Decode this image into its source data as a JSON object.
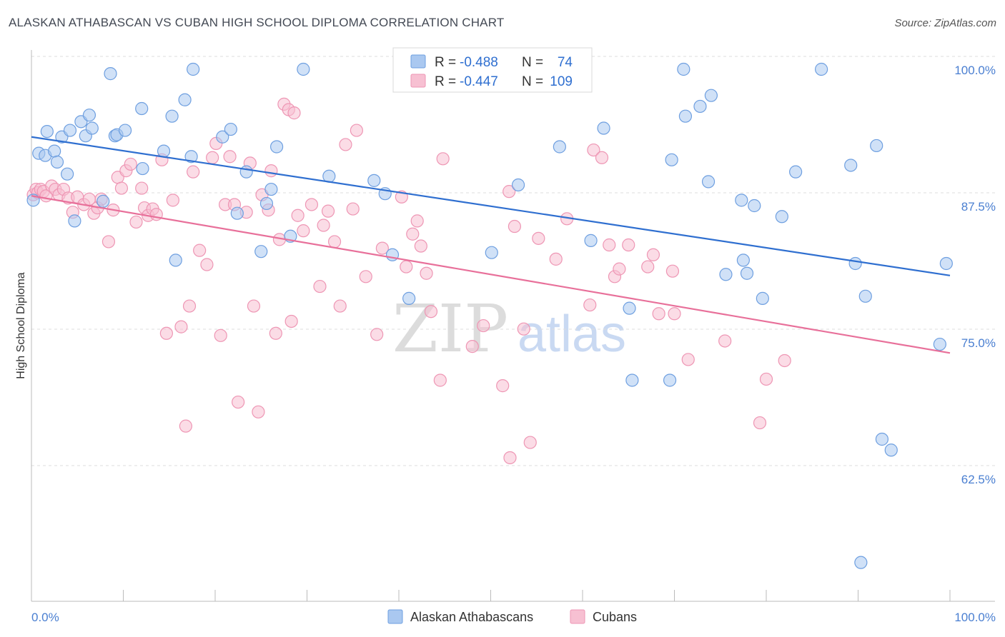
{
  "header": {
    "title": "ALASKAN ATHABASCAN VS CUBAN HIGH SCHOOL DIPLOMA CORRELATION CHART",
    "source": "Source: ZipAtlas.com"
  },
  "watermark": {
    "zip": "ZIP",
    "atlas": "atlas"
  },
  "colors": {
    "blue_fill": "#aac8f0",
    "blue_stroke": "#6e9fe0",
    "blue_line": "#2f6fd0",
    "pink_fill": "#f7c0d2",
    "pink_stroke": "#ee96b4",
    "pink_line": "#e8709a",
    "grid": "#dddddd",
    "axis_text": "#4a7fd1"
  },
  "legend": {
    "rows": [
      {
        "r_label": "R =",
        "r_value": "-0.488",
        "n_label": "N =",
        "n_value": "74"
      },
      {
        "r_label": "R =",
        "r_value": "-0.447",
        "n_label": "N =",
        "n_value": "109"
      }
    ]
  },
  "chart_data": {
    "type": "scatter",
    "title": "ALASKAN ATHABASCAN VS CUBAN HIGH SCHOOL DIPLOMA CORRELATION CHART",
    "xlabel": "",
    "ylabel": "High School Diploma",
    "xlim": [
      0,
      100
    ],
    "ylim": [
      52,
      103
    ],
    "x_tick_labels": [
      "0.0%",
      "100.0%"
    ],
    "y_ticks": [
      {
        "value": 100.0,
        "label": "100.0%"
      },
      {
        "value": 87.5,
        "label": "87.5%"
      },
      {
        "value": 75.0,
        "label": "75.0%"
      },
      {
        "value": 62.5,
        "label": "62.5%"
      }
    ],
    "grid": true,
    "legend_position": "bottom",
    "series": [
      {
        "name": "Alaskan Athabascans",
        "color": "blue",
        "r": -0.488,
        "n": 74,
        "trend": {
          "x0": 0,
          "y0": 93.8,
          "x1": 100,
          "y1": 81.1
        },
        "points": [
          [
            0.2,
            88.0
          ],
          [
            0.8,
            92.3
          ],
          [
            1.5,
            92.1
          ],
          [
            1.7,
            94.3
          ],
          [
            2.5,
            92.5
          ],
          [
            2.8,
            91.5
          ],
          [
            3.3,
            93.8
          ],
          [
            3.9,
            90.4
          ],
          [
            4.2,
            94.4
          ],
          [
            4.7,
            86.1
          ],
          [
            5.4,
            95.2
          ],
          [
            5.9,
            93.9
          ],
          [
            6.3,
            95.8
          ],
          [
            6.6,
            94.6
          ],
          [
            7.8,
            87.9
          ],
          [
            8.6,
            99.6
          ],
          [
            9.1,
            93.9
          ],
          [
            9.3,
            94.0
          ],
          [
            10.2,
            94.4
          ],
          [
            12.0,
            96.4
          ],
          [
            12.1,
            90.9
          ],
          [
            14.4,
            92.5
          ],
          [
            15.3,
            95.7
          ],
          [
            15.7,
            82.5
          ],
          [
            16.7,
            97.2
          ],
          [
            17.4,
            92.0
          ],
          [
            17.6,
            100.0
          ],
          [
            20.8,
            93.8
          ],
          [
            21.7,
            94.5
          ],
          [
            22.4,
            86.8
          ],
          [
            23.4,
            90.6
          ],
          [
            25.0,
            83.3
          ],
          [
            25.6,
            87.7
          ],
          [
            26.1,
            89.0
          ],
          [
            26.7,
            92.9
          ],
          [
            28.2,
            84.7
          ],
          [
            29.6,
            100.0
          ],
          [
            32.4,
            90.2
          ],
          [
            37.3,
            89.8
          ],
          [
            38.5,
            88.6
          ],
          [
            39.3,
            83.0
          ],
          [
            41.1,
            79.0
          ],
          [
            50.1,
            83.2
          ],
          [
            53.0,
            89.4
          ],
          [
            57.5,
            92.9
          ],
          [
            60.9,
            84.3
          ],
          [
            62.3,
            94.6
          ],
          [
            65.1,
            78.1
          ],
          [
            65.4,
            71.5
          ],
          [
            69.5,
            71.5
          ],
          [
            69.7,
            91.7
          ],
          [
            71.0,
            100.0
          ],
          [
            71.2,
            95.7
          ],
          [
            72.8,
            96.6
          ],
          [
            73.7,
            89.7
          ],
          [
            74.0,
            97.6
          ],
          [
            75.6,
            81.2
          ],
          [
            77.3,
            88.0
          ],
          [
            77.5,
            82.5
          ],
          [
            77.9,
            81.3
          ],
          [
            78.7,
            87.5
          ],
          [
            79.6,
            79.0
          ],
          [
            81.7,
            86.5
          ],
          [
            83.2,
            90.6
          ],
          [
            86.0,
            100.0
          ],
          [
            89.2,
            91.2
          ],
          [
            89.7,
            82.2
          ],
          [
            90.3,
            54.8
          ],
          [
            90.8,
            79.2
          ],
          [
            92.0,
            93.0
          ],
          [
            92.6,
            66.1
          ],
          [
            93.6,
            65.1
          ],
          [
            98.9,
            74.8
          ],
          [
            99.6,
            82.2
          ]
        ]
      },
      {
        "name": "Cubans",
        "color": "pink",
        "r": -0.447,
        "n": 109,
        "trend": {
          "x0": 0,
          "y0": 88.4,
          "x1": 100,
          "y1": 74.0
        },
        "points": [
          [
            0.2,
            88.5
          ],
          [
            0.5,
            89.0
          ],
          [
            0.7,
            88.7
          ],
          [
            1.0,
            89.0
          ],
          [
            1.3,
            88.8
          ],
          [
            1.6,
            88.4
          ],
          [
            2.2,
            89.3
          ],
          [
            2.6,
            89.0
          ],
          [
            3.0,
            88.5
          ],
          [
            3.5,
            89.0
          ],
          [
            4.0,
            88.2
          ],
          [
            4.5,
            86.9
          ],
          [
            5.0,
            88.3
          ],
          [
            5.7,
            87.6
          ],
          [
            6.3,
            88.1
          ],
          [
            6.8,
            86.8
          ],
          [
            7.2,
            87.3
          ],
          [
            7.6,
            88.1
          ],
          [
            8.4,
            84.2
          ],
          [
            8.9,
            87.1
          ],
          [
            9.4,
            90.1
          ],
          [
            9.8,
            89.1
          ],
          [
            10.3,
            90.7
          ],
          [
            10.8,
            91.3
          ],
          [
            11.4,
            86.0
          ],
          [
            12.0,
            89.1
          ],
          [
            12.3,
            87.3
          ],
          [
            12.7,
            86.6
          ],
          [
            13.2,
            87.2
          ],
          [
            13.6,
            86.7
          ],
          [
            14.2,
            91.7
          ],
          [
            14.7,
            75.8
          ],
          [
            15.4,
            88.0
          ],
          [
            16.3,
            76.4
          ],
          [
            16.8,
            67.3
          ],
          [
            17.2,
            78.3
          ],
          [
            17.6,
            90.6
          ],
          [
            18.3,
            83.4
          ],
          [
            19.1,
            82.1
          ],
          [
            19.7,
            91.9
          ],
          [
            20.1,
            93.2
          ],
          [
            20.6,
            75.6
          ],
          [
            21.1,
            87.6
          ],
          [
            21.6,
            92.0
          ],
          [
            22.1,
            87.6
          ],
          [
            22.5,
            69.5
          ],
          [
            23.4,
            86.9
          ],
          [
            23.8,
            91.4
          ],
          [
            24.2,
            78.3
          ],
          [
            24.7,
            68.6
          ],
          [
            25.1,
            88.5
          ],
          [
            25.8,
            87.1
          ],
          [
            26.1,
            90.7
          ],
          [
            26.6,
            75.8
          ],
          [
            27.0,
            84.4
          ],
          [
            27.5,
            96.8
          ],
          [
            28.0,
            96.3
          ],
          [
            28.3,
            76.9
          ],
          [
            28.6,
            96.0
          ],
          [
            29.0,
            86.6
          ],
          [
            29.6,
            85.2
          ],
          [
            30.5,
            87.6
          ],
          [
            31.4,
            80.1
          ],
          [
            31.8,
            85.7
          ],
          [
            32.3,
            87.0
          ],
          [
            33.0,
            84.2
          ],
          [
            33.6,
            78.3
          ],
          [
            34.2,
            93.1
          ],
          [
            35.0,
            87.2
          ],
          [
            35.4,
            94.4
          ],
          [
            36.4,
            81.0
          ],
          [
            37.6,
            75.7
          ],
          [
            38.2,
            83.6
          ],
          [
            40.3,
            88.3
          ],
          [
            40.8,
            81.9
          ],
          [
            41.5,
            84.9
          ],
          [
            42.0,
            86.1
          ],
          [
            42.4,
            83.8
          ],
          [
            43.0,
            81.3
          ],
          [
            43.5,
            77.8
          ],
          [
            44.5,
            71.5
          ],
          [
            44.8,
            91.8
          ],
          [
            48.0,
            74.6
          ],
          [
            49.2,
            76.5
          ],
          [
            51.3,
            71.0
          ],
          [
            52.0,
            88.8
          ],
          [
            52.6,
            85.6
          ],
          [
            53.6,
            76.2
          ],
          [
            54.3,
            65.8
          ],
          [
            55.2,
            84.5
          ],
          [
            57.1,
            82.6
          ],
          [
            58.3,
            86.3
          ],
          [
            60.8,
            78.4
          ],
          [
            61.2,
            92.6
          ],
          [
            62.1,
            91.9
          ],
          [
            62.9,
            83.9
          ],
          [
            63.5,
            81.0
          ],
          [
            64.0,
            81.7
          ],
          [
            65.0,
            83.9
          ],
          [
            67.1,
            81.9
          ],
          [
            67.7,
            83.0
          ],
          [
            68.3,
            77.6
          ],
          [
            69.8,
            81.5
          ],
          [
            70.0,
            77.6
          ],
          [
            71.5,
            73.4
          ],
          [
            75.5,
            75.1
          ],
          [
            79.3,
            67.6
          ],
          [
            80.0,
            71.6
          ],
          [
            82.0,
            73.3
          ],
          [
            52.1,
            64.4
          ]
        ]
      }
    ]
  },
  "bottom_legend": {
    "items": [
      "Alaskan Athabascans",
      "Cubans"
    ]
  }
}
